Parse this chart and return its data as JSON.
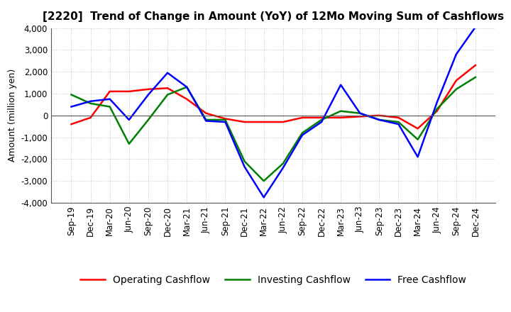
{
  "title": "[2220]  Trend of Change in Amount (YoY) of 12Mo Moving Sum of Cashflows",
  "ylabel": "Amount (million yen)",
  "ylim": [
    -4000,
    4000
  ],
  "yticks": [
    -4000,
    -3000,
    -2000,
    -1000,
    0,
    1000,
    2000,
    3000,
    4000
  ],
  "x_labels": [
    "Sep-19",
    "Dec-19",
    "Mar-20",
    "Jun-20",
    "Sep-20",
    "Dec-20",
    "Mar-21",
    "Jun-21",
    "Sep-21",
    "Dec-21",
    "Mar-22",
    "Jun-22",
    "Sep-22",
    "Dec-22",
    "Mar-23",
    "Jun-23",
    "Sep-23",
    "Dec-23",
    "Mar-24",
    "Jun-24",
    "Sep-24",
    "Dec-24"
  ],
  "operating": [
    -400,
    -100,
    1100,
    1100,
    1200,
    1250,
    750,
    100,
    -150,
    -300,
    -300,
    -300,
    -100,
    -100,
    -100,
    -50,
    0,
    -100,
    -600,
    200,
    1600,
    2300
  ],
  "investing": [
    950,
    550,
    400,
    -1300,
    -200,
    950,
    1300,
    -200,
    -200,
    -2100,
    -3000,
    -2200,
    -800,
    -200,
    200,
    100,
    -200,
    -300,
    -1100,
    300,
    1200,
    1750
  ],
  "free": [
    400,
    650,
    750,
    -200,
    950,
    1950,
    1300,
    -250,
    -300,
    -2350,
    -3750,
    -2400,
    -900,
    -300,
    1400,
    100,
    -200,
    -400,
    -1900,
    600,
    2800,
    4050
  ],
  "op_color": "#FF0000",
  "inv_color": "#008000",
  "free_color": "#0000FF",
  "bg_color": "#FFFFFF",
  "grid_color": "#AAAAAA",
  "title_fontsize": 11,
  "axis_fontsize": 8.5,
  "ylabel_fontsize": 9,
  "legend_fontsize": 10
}
